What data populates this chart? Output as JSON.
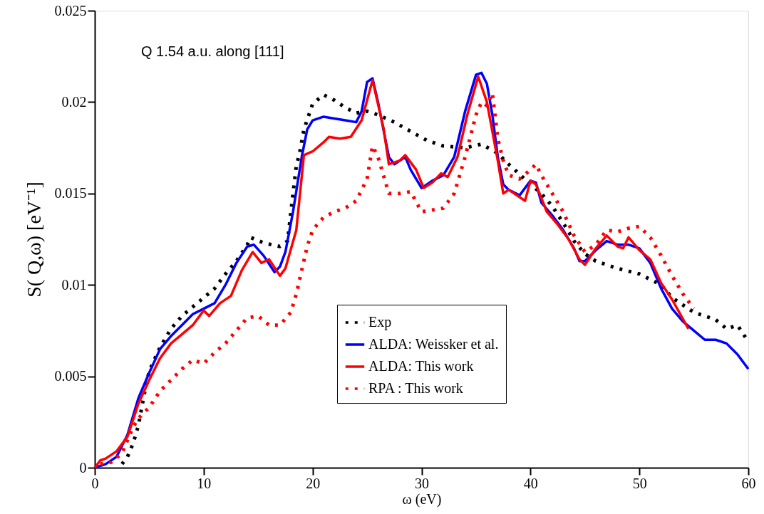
{
  "chart_data": {
    "type": "line",
    "xlabel": "ω (eV)",
    "ylabel": "S( Q,ω) [eV⁻¹]",
    "annotations": [
      "Q 1.54 a.u. along [111]"
    ],
    "xlim": [
      0,
      60
    ],
    "xticks": [
      0,
      10,
      20,
      30,
      40,
      50,
      60
    ],
    "ylim": [
      0,
      0.025
    ],
    "yticks": [
      0,
      0.005,
      0.01,
      0.015,
      0.02,
      0.025
    ],
    "grid": false,
    "legend": "bottom",
    "series": [
      {
        "name": "Exp",
        "color": "#000000",
        "line_style": "dotted",
        "x": [
          2.5,
          3,
          3.5,
          4,
          4.5,
          5,
          6,
          7,
          8,
          9,
          10,
          11,
          12,
          13,
          14,
          14.3,
          15.5,
          17,
          17.7,
          18.2,
          18.5,
          18.8,
          19.2,
          20,
          21,
          22,
          23,
          24,
          25,
          26,
          27.5,
          29,
          30.5,
          32,
          34,
          35.5,
          37,
          38,
          40,
          41,
          42,
          43,
          44,
          45,
          46,
          47,
          48,
          50,
          52,
          53,
          55,
          57,
          58,
          59,
          60
        ],
        "values": [
          0.0002,
          0.0006,
          0.0013,
          0.0023,
          0.0039,
          0.0053,
          0.0066,
          0.0076,
          0.0083,
          0.0088,
          0.0093,
          0.0098,
          0.0106,
          0.0113,
          0.0122,
          0.0126,
          0.0123,
          0.0121,
          0.0124,
          0.015,
          0.0165,
          0.0172,
          0.0185,
          0.0199,
          0.0204,
          0.0201,
          0.0197,
          0.0194,
          0.0195,
          0.0193,
          0.0189,
          0.0184,
          0.0179,
          0.0176,
          0.0175,
          0.0177,
          0.0172,
          0.0166,
          0.0155,
          0.015,
          0.0143,
          0.0134,
          0.0124,
          0.0117,
          0.0113,
          0.0111,
          0.0109,
          0.0106,
          0.01,
          0.0093,
          0.0085,
          0.0081,
          0.0076,
          0.0078,
          0.0069
        ]
      },
      {
        "name": "ALDA: Weissker et al.",
        "color": "#0000ff",
        "line_style": "solid",
        "x": [
          0,
          1,
          2,
          3,
          4,
          5,
          6,
          7,
          8,
          9,
          10,
          11,
          12,
          13,
          14,
          14.6,
          15.5,
          16.5,
          17,
          17.5,
          18.2,
          19,
          19.5,
          20,
          21,
          22,
          23,
          24,
          24.5,
          25,
          25.5,
          26,
          26.5,
          27,
          27.5,
          28.5,
          29,
          30,
          31,
          32,
          33,
          34,
          35,
          35.5,
          36,
          36.5,
          37,
          37.5,
          38,
          39,
          40,
          40.5,
          41,
          42,
          43,
          44,
          44.5,
          45,
          46,
          47,
          48,
          49,
          50,
          51,
          52,
          53,
          54,
          55,
          56,
          57,
          58,
          59,
          60
        ],
        "values": [
          0,
          0.0002,
          0.0006,
          0.0018,
          0.0038,
          0.0052,
          0.0065,
          0.0072,
          0.0078,
          0.0084,
          0.0087,
          0.009,
          0.01,
          0.0112,
          0.0121,
          0.0122,
          0.0116,
          0.0107,
          0.011,
          0.0118,
          0.014,
          0.017,
          0.0185,
          0.019,
          0.0192,
          0.0191,
          0.019,
          0.0189,
          0.0195,
          0.0211,
          0.0213,
          0.02,
          0.0185,
          0.017,
          0.0166,
          0.017,
          0.0163,
          0.0153,
          0.0157,
          0.016,
          0.017,
          0.0195,
          0.0215,
          0.0216,
          0.021,
          0.0193,
          0.017,
          0.0155,
          0.0152,
          0.0149,
          0.0157,
          0.0156,
          0.0145,
          0.0138,
          0.013,
          0.012,
          0.0113,
          0.0113,
          0.0119,
          0.0124,
          0.0122,
          0.0122,
          0.012,
          0.0112,
          0.0098,
          0.0087,
          0.008,
          0.0075,
          0.007,
          0.007,
          0.0068,
          0.0062,
          0.0054
        ]
      },
      {
        "name": "ALDA: This work",
        "color": "#ff0000",
        "line_style": "solid",
        "x": [
          0,
          0.5,
          1,
          2,
          3,
          4,
          5,
          6,
          7,
          8,
          9,
          10,
          10.5,
          11.5,
          12.5,
          13.5,
          14.5,
          15.3,
          16,
          17,
          17.5,
          18.5,
          19.2,
          20,
          21,
          21.5,
          22.5,
          23.5,
          24.5,
          25.5,
          26.5,
          27,
          28,
          28.5,
          29.5,
          30.2,
          31,
          31.8,
          32.4,
          33.3,
          34.2,
          35.2,
          36,
          37,
          37.5,
          38,
          39.5,
          40,
          40.5,
          41.5,
          42.5,
          43.5,
          44.5,
          45,
          46,
          47,
          48,
          48.5,
          49,
          50,
          51,
          52,
          53,
          54.5
        ],
        "values": [
          0,
          0.0004,
          0.0005,
          0.0009,
          0.0017,
          0.0035,
          0.0048,
          0.006,
          0.0068,
          0.0073,
          0.0078,
          0.0086,
          0.0083,
          0.009,
          0.0094,
          0.0108,
          0.0118,
          0.0112,
          0.0114,
          0.0105,
          0.0109,
          0.013,
          0.0171,
          0.0173,
          0.0178,
          0.0181,
          0.018,
          0.0181,
          0.019,
          0.0212,
          0.0186,
          0.0166,
          0.0168,
          0.0171,
          0.0163,
          0.0153,
          0.0156,
          0.0161,
          0.0159,
          0.017,
          0.0193,
          0.0214,
          0.02,
          0.0168,
          0.015,
          0.0152,
          0.0146,
          0.0157,
          0.0155,
          0.014,
          0.0133,
          0.0125,
          0.0114,
          0.0111,
          0.012,
          0.0127,
          0.0121,
          0.012,
          0.0126,
          0.0119,
          0.0114,
          0.0101,
          0.0092,
          0.0076
        ]
      },
      {
        "name": "RPA   : This work",
        "color": "#ff0000",
        "line_style": "dotted",
        "x": [
          0.5,
          1.5,
          2.5,
          3,
          3.5,
          4,
          5,
          6,
          7,
          8,
          9,
          10,
          11,
          12,
          13,
          14,
          15,
          16,
          17,
          18,
          18.5,
          19,
          19.5,
          20,
          21,
          22,
          23,
          24,
          25,
          25.5,
          26,
          26.5,
          27,
          28,
          29,
          30,
          31,
          32,
          33,
          34,
          35,
          35.5,
          36,
          36.5,
          37,
          37.5,
          38,
          39,
          40,
          40.5,
          41,
          42,
          43,
          44,
          45,
          46,
          47,
          48,
          49,
          50,
          51,
          52,
          53,
          54,
          55
        ],
        "values": [
          0.0002,
          0.0003,
          0.0008,
          0.0015,
          0.0022,
          0.0027,
          0.0033,
          0.0042,
          0.0048,
          0.0054,
          0.0059,
          0.0057,
          0.0063,
          0.0068,
          0.0075,
          0.0082,
          0.0083,
          0.0078,
          0.0078,
          0.0085,
          0.0095,
          0.0108,
          0.0121,
          0.013,
          0.0137,
          0.014,
          0.0142,
          0.0146,
          0.0158,
          0.0176,
          0.017,
          0.016,
          0.015,
          0.015,
          0.0151,
          0.014,
          0.0141,
          0.0142,
          0.015,
          0.017,
          0.0193,
          0.02,
          0.0198,
          0.0205,
          0.018,
          0.0168,
          0.016,
          0.0158,
          0.0163,
          0.0166,
          0.016,
          0.015,
          0.014,
          0.0127,
          0.0118,
          0.0122,
          0.013,
          0.0129,
          0.0131,
          0.0132,
          0.0126,
          0.0116,
          0.0105,
          0.0095,
          0.0087
        ]
      }
    ]
  }
}
